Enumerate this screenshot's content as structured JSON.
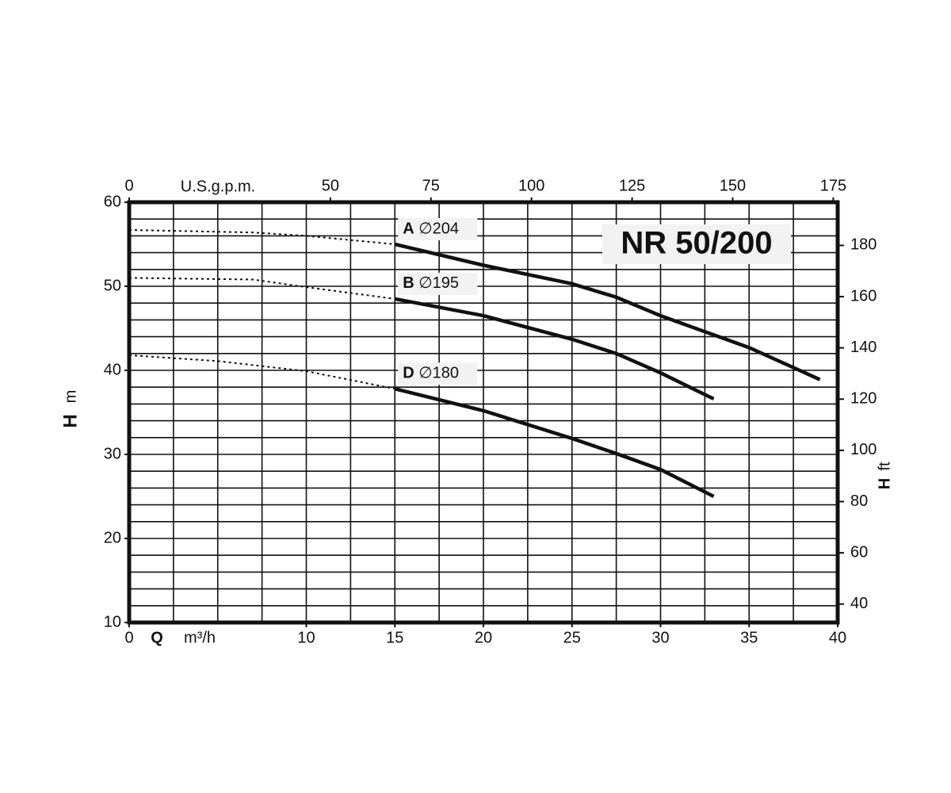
{
  "chart_data": {
    "type": "line",
    "title": "NR 50/200",
    "xlabel_symbol": "Q",
    "xlabel_unit": "m³/h",
    "ylabel_symbol": "H",
    "ylabel_unit": "m",
    "x2label": "U.S.g.p.m.",
    "y2label_symbol": "H",
    "y2label_unit": "ft",
    "xlim": [
      0,
      40
    ],
    "xticks": [
      0,
      10,
      15,
      20,
      25,
      30,
      35,
      40
    ],
    "ylim": [
      10,
      60
    ],
    "yticks": [
      10,
      20,
      30,
      40,
      50,
      60
    ],
    "x2lim": [
      0,
      176.1
    ],
    "x2ticks": [
      0,
      50,
      75,
      100,
      125,
      150,
      175
    ],
    "y2lim": [
      32.8,
      196.85
    ],
    "y2ticks": [
      40,
      60,
      80,
      100,
      120,
      140,
      160,
      180
    ],
    "grid": true,
    "xgrid_step": 2.5,
    "ygrid_step": 2,
    "color": "#111111",
    "series": [
      {
        "name": "A",
        "label": "∅204",
        "dotted": {
          "x": [
            0,
            7,
            10,
            15
          ],
          "values": [
            56.7,
            56.4,
            56.0,
            55.0
          ]
        },
        "solid": {
          "x": [
            15,
            20,
            25,
            27.5,
            30,
            35,
            39
          ],
          "values": [
            55.0,
            52.5,
            50.3,
            48.7,
            46.5,
            42.7,
            38.9
          ]
        }
      },
      {
        "name": "B",
        "label": "∅195",
        "dotted": {
          "x": [
            0,
            7,
            10,
            15
          ],
          "values": [
            51.0,
            50.8,
            49.9,
            48.5
          ]
        },
        "solid": {
          "x": [
            15,
            20,
            25,
            27.5,
            30,
            33
          ],
          "values": [
            48.5,
            46.5,
            43.7,
            42.0,
            39.7,
            36.6
          ]
        }
      },
      {
        "name": "D",
        "label": "∅180",
        "dotted": {
          "x": [
            0,
            5,
            10,
            15
          ],
          "values": [
            41.8,
            41.1,
            39.9,
            37.8
          ]
        },
        "solid": {
          "x": [
            15,
            20,
            25,
            27.5,
            30,
            33
          ],
          "values": [
            37.8,
            35.2,
            31.9,
            30.1,
            28.2,
            25.0
          ]
        }
      }
    ]
  }
}
